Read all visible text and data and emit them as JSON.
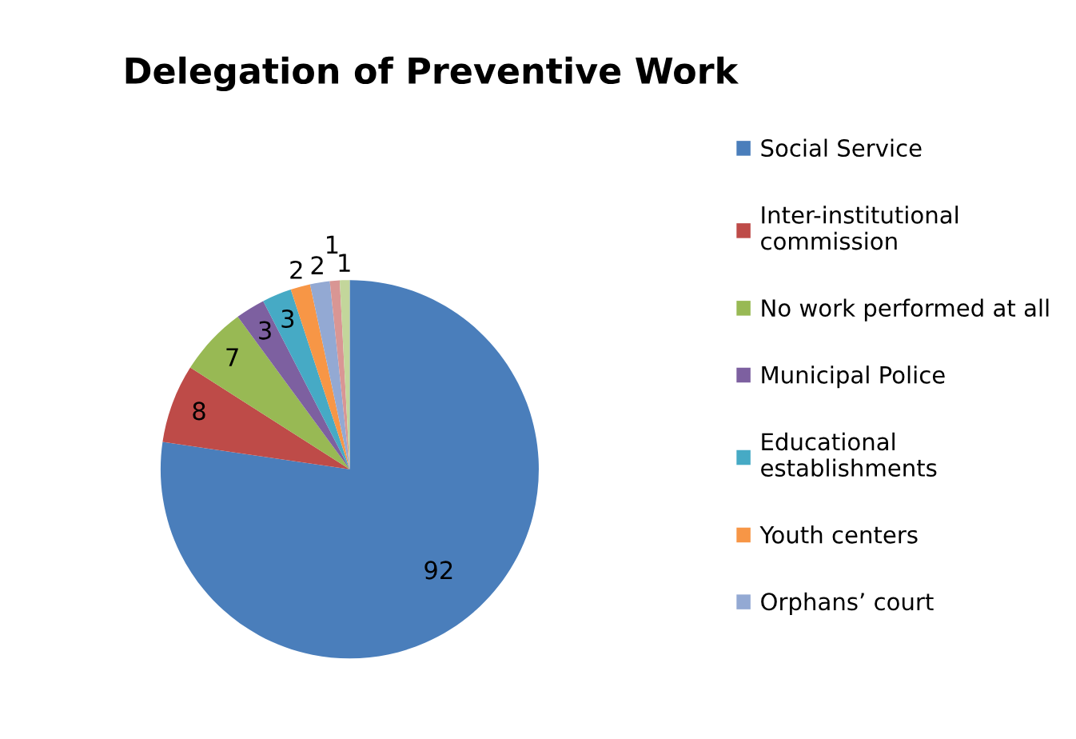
{
  "chart_data": {
    "type": "pie",
    "title": "Delegation of Preventive Work",
    "categories": [
      "Social Service",
      "Inter-institutional\ncommission",
      "No work performed at all",
      "Municipal Police",
      "Educational\nestablishments",
      "Youth centers",
      "Orphans’ court",
      null,
      null
    ],
    "values": [
      92,
      8,
      7,
      3,
      3,
      2,
      2,
      1,
      1
    ],
    "colors": [
      "#4a7ebb",
      "#be4b48",
      "#98b954",
      "#7d60a0",
      "#46aac5",
      "#f79646",
      "#93a9d3",
      "#d99694",
      "#c3d69b"
    ],
    "data_labels": true,
    "legend": "right"
  }
}
